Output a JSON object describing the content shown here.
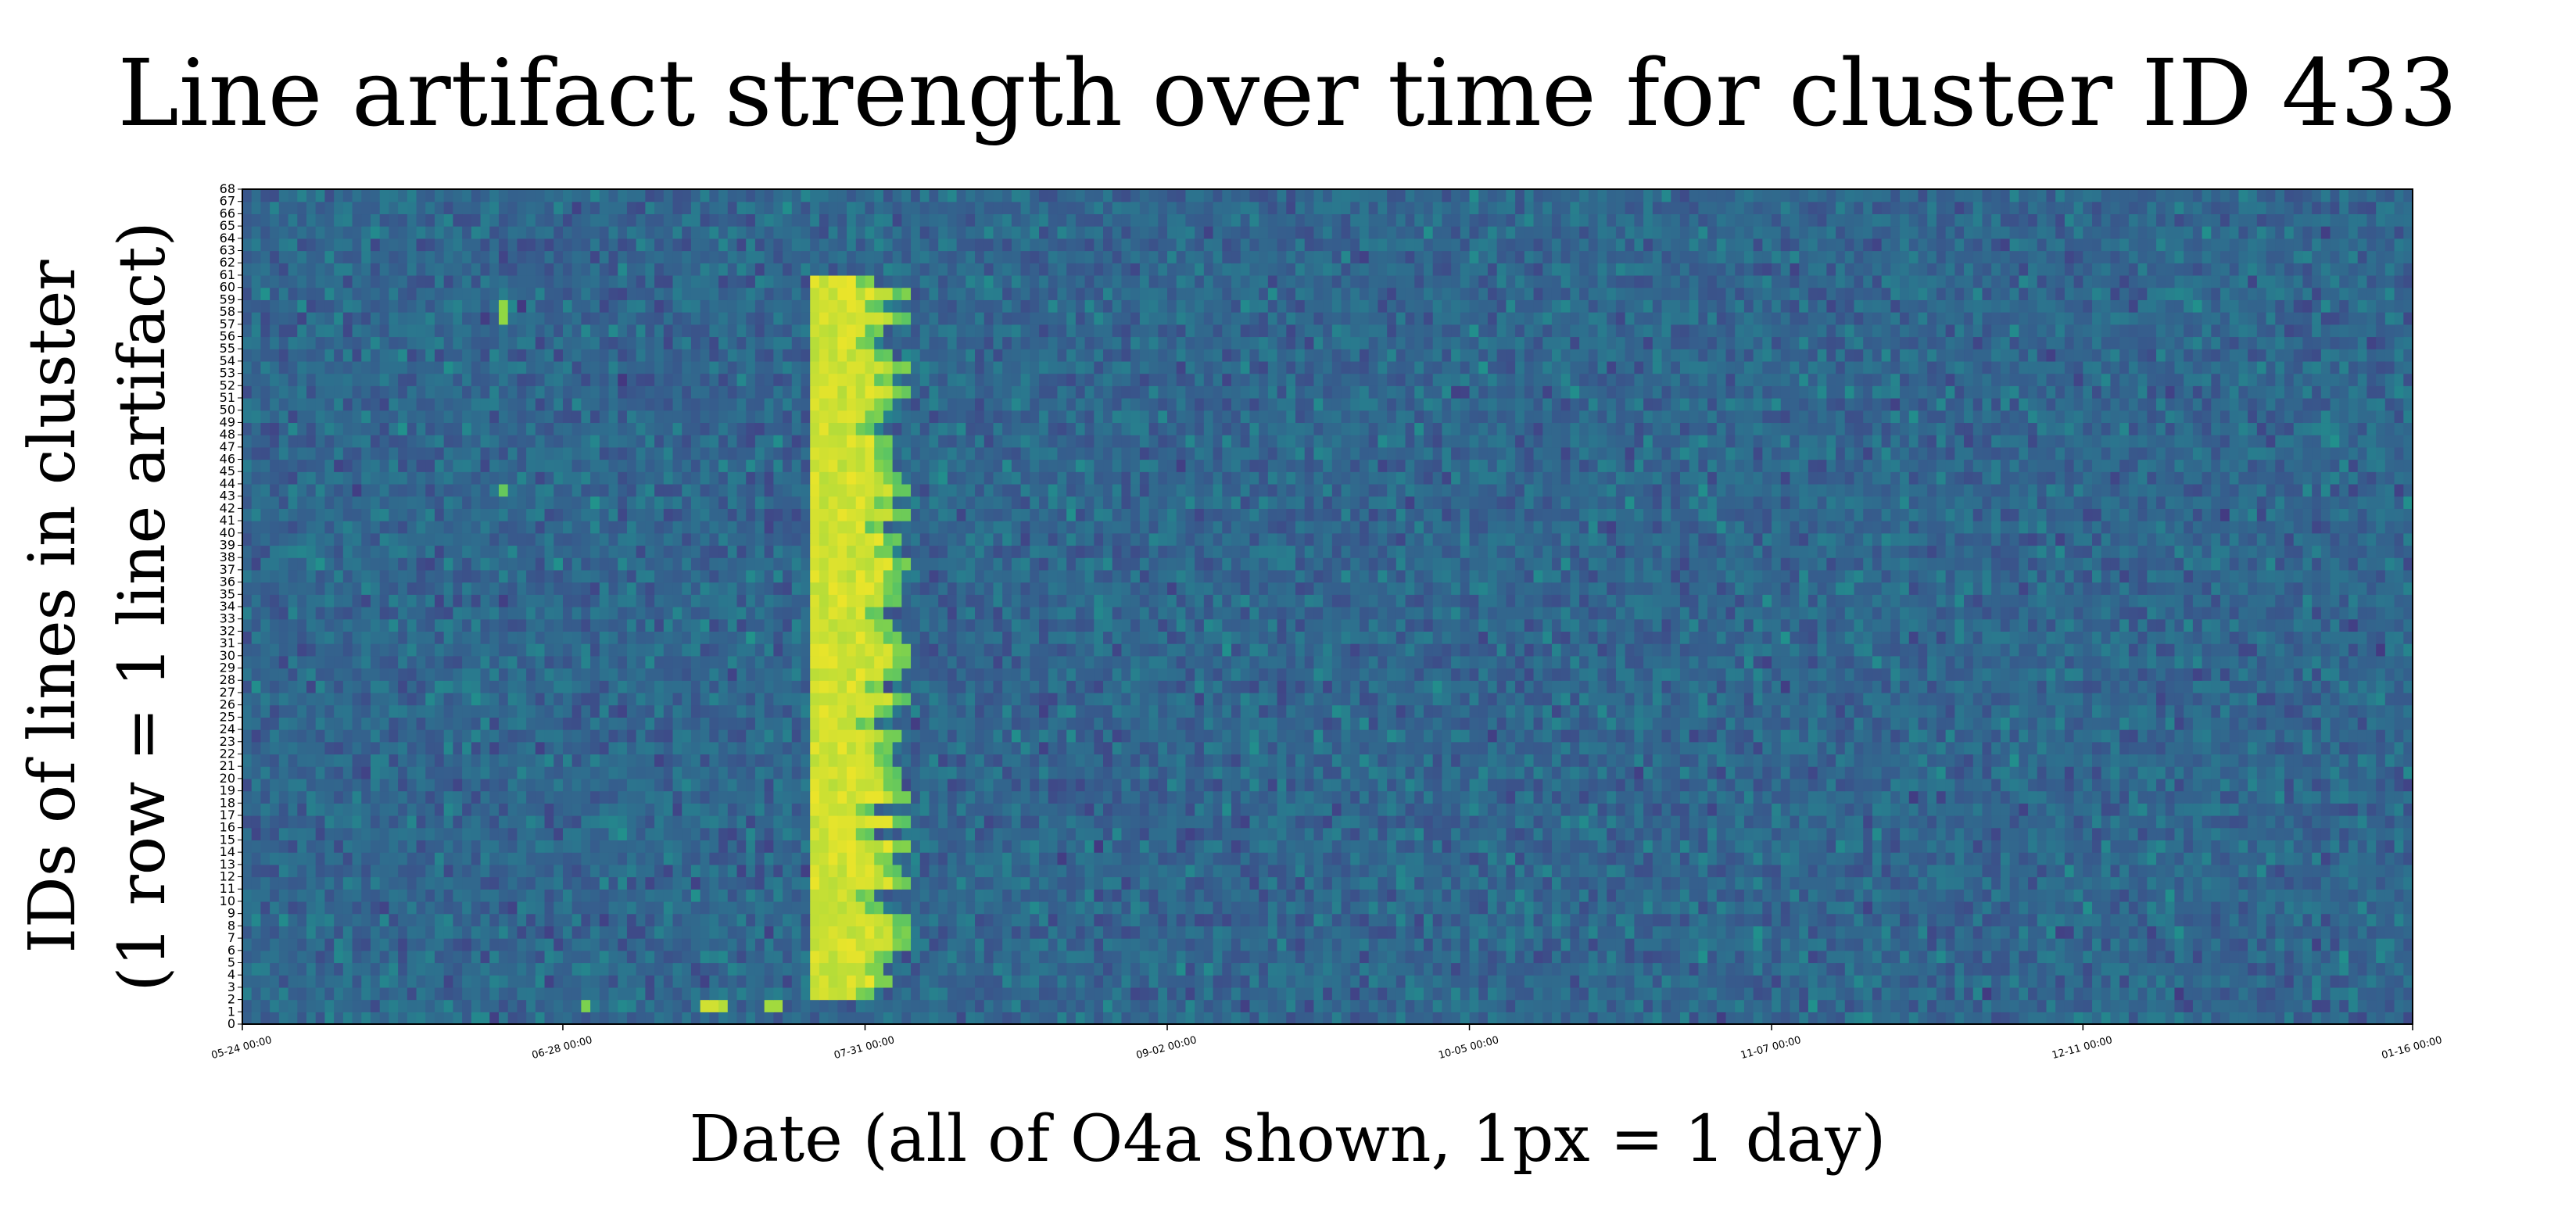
{
  "chart_data": {
    "type": "heatmap",
    "title": "Line artifact strength over time for cluster ID 433",
    "xlabel": "Date (all of O4a shown, 1px = 1 day)",
    "ylabel_lines": [
      "IDs of lines in cluster",
      "(1 row = 1 line artifact)"
    ],
    "x_tick_labels": [
      "05-24 00:00",
      "06-28 00:00",
      "07-31 00:00",
      "09-02 00:00",
      "10-05 00:00",
      "11-07 00:00",
      "12-11 00:00",
      "01-16 00:00"
    ],
    "x_tick_days": [
      0,
      35,
      68,
      101,
      134,
      167,
      201,
      237
    ],
    "x_range_days": [
      0,
      237
    ],
    "y_range": [
      0,
      68
    ],
    "y_tick_step": 1,
    "colormap": "viridis",
    "value_range": [
      0,
      1
    ],
    "background_level": 0.42,
    "background_spread": 0.14,
    "artifact_region": {
      "rows": [
        2,
        60
      ],
      "day_start": 62,
      "day_end_range": [
        68,
        72
      ],
      "level": 0.98
    },
    "highlight_cells": [
      {
        "row": 1,
        "day": 50,
        "value": 0.95
      },
      {
        "row": 1,
        "day": 51,
        "value": 0.95
      },
      {
        "row": 1,
        "day": 52,
        "value": 0.92
      },
      {
        "row": 1,
        "day": 57,
        "value": 0.9
      },
      {
        "row": 1,
        "day": 58,
        "value": 0.9
      },
      {
        "row": 1,
        "day": 37,
        "value": 0.85
      },
      {
        "row": 57,
        "day": 28,
        "value": 0.88
      },
      {
        "row": 58,
        "day": 28,
        "value": 0.88
      },
      {
        "row": 43,
        "day": 28,
        "value": 0.82
      }
    ],
    "grid": false
  }
}
